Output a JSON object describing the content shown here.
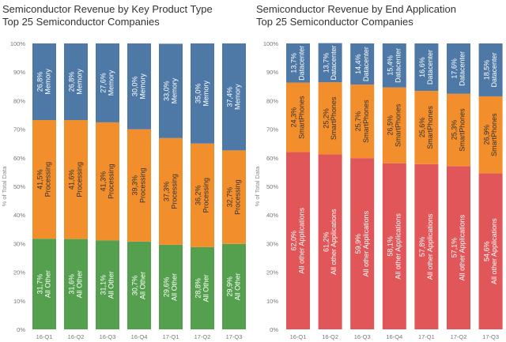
{
  "chart_data": [
    {
      "type": "bar",
      "stacked": true,
      "title": "Semiconductor Revenue by Key Product Type",
      "subtitle": "Top 25 Semiconductor Companies",
      "xlabel": "",
      "ylabel": "% of Total Data",
      "ylim": [
        0,
        100
      ],
      "yticks": [
        "0%",
        "10%",
        "20%",
        "30%",
        "40%",
        "50%",
        "60%",
        "70%",
        "80%",
        "90%",
        "100%"
      ],
      "categories": [
        "16-Q1",
        "16-Q2",
        "16-Q3",
        "16-Q4",
        "17-Q1",
        "17-Q2",
        "17-Q3"
      ],
      "series": [
        {
          "name": "All Other",
          "color": "#55a04f",
          "text_color": "#ffffff",
          "values": [
            31.7,
            31.6,
            31.1,
            30.7,
            29.6,
            28.8,
            29.9
          ],
          "labels": [
            "31,7%",
            "31,6%",
            "31,1%",
            "30,7%",
            "29,6%",
            "28,8%",
            "29,9%"
          ]
        },
        {
          "name": "Processing",
          "color": "#f28e2c",
          "text_color": "#333333",
          "values": [
            41.5,
            41.6,
            41.3,
            39.3,
            37.3,
            36.2,
            32.7
          ],
          "labels": [
            "41,5%",
            "41,6%",
            "41,3%",
            "39,3%",
            "37,3%",
            "36,2%",
            "32,7%"
          ]
        },
        {
          "name": "Memory",
          "color": "#4e79a7",
          "text_color": "#ffffff",
          "values": [
            26.8,
            26.8,
            27.6,
            30.0,
            33.0,
            35.0,
            37.4
          ],
          "labels": [
            "26,8%",
            "26,8%",
            "27,6%",
            "30,0%",
            "33,0%",
            "35,0%",
            "37,4%"
          ]
        }
      ],
      "grid": false,
      "legend": "none"
    },
    {
      "type": "bar",
      "stacked": true,
      "title": "Semiconductor Revenue by End Application",
      "subtitle": "Top 25 Semiconductor Companies",
      "xlabel": "",
      "ylabel": "% of Total Data",
      "ylim": [
        0,
        100
      ],
      "yticks": [
        "0%",
        "10%",
        "20%",
        "30%",
        "40%",
        "50%",
        "60%",
        "70%",
        "80%",
        "90%",
        "100%"
      ],
      "categories": [
        "16-Q1",
        "16-Q2",
        "16-Q3",
        "16-Q4",
        "17-Q1",
        "17-Q2",
        "17-Q3"
      ],
      "series": [
        {
          "name": "All other Applications",
          "color": "#e15759",
          "text_color": "#ffffff",
          "values": [
            62.0,
            61.2,
            59.9,
            58.1,
            57.8,
            57.1,
            54.6
          ],
          "labels": [
            "62,0%",
            "61,2%",
            "59,9%",
            "58,1%",
            "57,8%",
            "57,1%",
            "54,6%"
          ]
        },
        {
          "name": "SmartPhones",
          "color": "#f28e2c",
          "text_color": "#333333",
          "values": [
            24.3,
            25.2,
            25.7,
            26.5,
            25.6,
            25.3,
            26.9
          ],
          "labels": [
            "24,3%",
            "25,2%",
            "25,7%",
            "26,5%",
            "25,6%",
            "25,3%",
            "26,9%"
          ]
        },
        {
          "name": "Datacenter",
          "color": "#4e79a7",
          "text_color": "#ffffff",
          "values": [
            13.7,
            13.7,
            14.4,
            15.4,
            16.6,
            17.6,
            18.5
          ],
          "labels": [
            "13,7%",
            "13,7%",
            "14,4%",
            "15,4%",
            "16,6%",
            "17,6%",
            "18,5%"
          ]
        }
      ],
      "grid": false,
      "legend": "none"
    }
  ]
}
